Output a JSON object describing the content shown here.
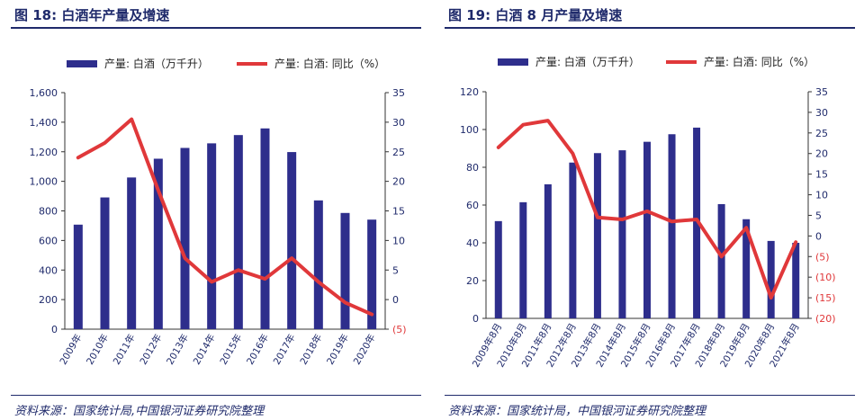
{
  "left_panel": {
    "title": "图 18:  白酒年产量及增速",
    "source": "资料来源：国家统计局,中国银河证券研究院整理"
  },
  "right_panel": {
    "title": "图 19:  白酒 8 月产量及增速",
    "source": "资料来源：国家统计局，中国银河证券研究院整理"
  },
  "colors": {
    "bar": "#2e2e8c",
    "line": "#e0383a",
    "text": "#1f2a6b"
  },
  "chart_data": [
    {
      "type": "bar",
      "combo": "bar + line (dual axis)",
      "categories": [
        "2009年",
        "2010年",
        "2011年",
        "2012年",
        "2013年",
        "2014年",
        "2015年",
        "2016年",
        "2017年",
        "2018年",
        "2019年",
        "2020年"
      ],
      "series": [
        {
          "name": "产量: 白酒（万千升）",
          "type": "bar",
          "axis": "left",
          "values": [
            707,
            891,
            1026,
            1153,
            1226,
            1257,
            1313,
            1358,
            1198,
            871,
            786,
            741
          ]
        },
        {
          "name": "产量: 白酒: 同比（%）",
          "type": "line",
          "axis": "right",
          "values": [
            24,
            26.5,
            30.5,
            18.5,
            7,
            3,
            5,
            3.5,
            7,
            3,
            -0.5,
            -2.5
          ]
        }
      ],
      "ylim_left": [
        0,
        1600
      ],
      "yticks_left": [
        0,
        200,
        400,
        600,
        800,
        1000,
        1200,
        1400,
        1600
      ],
      "yticklabels_left": [
        "0",
        "200",
        "400",
        "600",
        "800",
        "1,000",
        "1,200",
        "1,400",
        "1,600"
      ],
      "ylim_right": [
        -5,
        35
      ],
      "yticks_right": [
        -5,
        0,
        5,
        10,
        15,
        20,
        25,
        30,
        35
      ],
      "yticklabels_right": [
        "(5)",
        "0",
        "5",
        "10",
        "15",
        "20",
        "25",
        "30",
        "35"
      ],
      "legend": "top-center",
      "grid": false
    },
    {
      "type": "bar",
      "combo": "bar + line (dual axis)",
      "categories": [
        "2009年8月",
        "2010年8月",
        "2011年8月",
        "2012年8月",
        "2013年8月",
        "2014年8月",
        "2015年8月",
        "2016年8月",
        "2017年8月",
        "2018年8月",
        "2019年8月",
        "2020年8月",
        "2021年8月"
      ],
      "series": [
        {
          "name": "产量: 白酒（万千升）",
          "type": "bar",
          "axis": "left",
          "values": [
            51.5,
            61.5,
            71,
            82.5,
            87.5,
            89,
            93.5,
            97.5,
            101,
            60.5,
            52.5,
            41,
            40
          ]
        },
        {
          "name": "产量: 白酒: 同比（%）",
          "type": "line",
          "axis": "right",
          "values": [
            21.5,
            27,
            28,
            20,
            4.5,
            4,
            6,
            3.5,
            4,
            -5,
            2,
            -15,
            -1.5
          ]
        }
      ],
      "ylim_left": [
        0,
        120
      ],
      "yticks_left": [
        0,
        20,
        40,
        60,
        80,
        100,
        120
      ],
      "yticklabels_left": [
        "0",
        "20",
        "40",
        "60",
        "80",
        "100",
        "120"
      ],
      "ylim_right": [
        -20,
        35
      ],
      "yticks_right": [
        -20,
        -15,
        -10,
        -5,
        0,
        5,
        10,
        15,
        20,
        25,
        30,
        35
      ],
      "yticklabels_right": [
        "(20)",
        "(15)",
        "(10)",
        "(5)",
        "0",
        "5",
        "10",
        "15",
        "20",
        "25",
        "30",
        "35"
      ],
      "legend": "top-center",
      "grid": false
    }
  ]
}
